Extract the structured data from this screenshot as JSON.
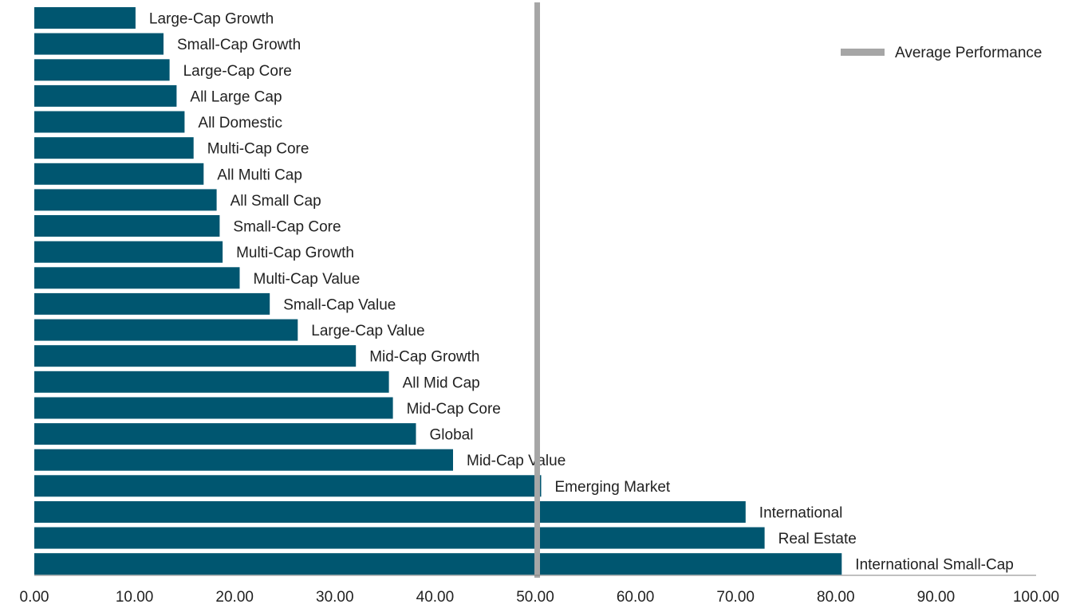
{
  "chart_data": {
    "type": "bar",
    "orientation": "horizontal",
    "title": "",
    "xlabel": "",
    "ylabel": "",
    "xlim": [
      0,
      100
    ],
    "x_ticks": [
      "0.00",
      "10.00",
      "20.00",
      "30.00",
      "40.00",
      "50.00",
      "60.00",
      "70.00",
      "80.00",
      "90.00",
      "100.00"
    ],
    "grid": false,
    "categories": [
      "Large-Cap Growth",
      "Small-Cap Growth",
      "Large-Cap Core",
      "All Large Cap",
      "All Domestic",
      "Multi-Cap Core",
      "All Multi Cap",
      "All Small Cap",
      "Small-Cap Core",
      "Multi-Cap Growth",
      "Multi-Cap Value",
      "Small-Cap Value",
      "Large-Cap Value",
      "Mid-Cap Growth",
      "All Mid Cap",
      "Mid-Cap Core",
      "Global",
      "Mid-Cap Value",
      "Emerging Market",
      "International",
      "Real Estate",
      "International Small-Cap"
    ],
    "values": [
      10.1,
      12.9,
      13.5,
      14.2,
      15.0,
      15.9,
      16.9,
      18.2,
      18.5,
      18.8,
      20.5,
      23.5,
      26.3,
      32.1,
      35.4,
      35.8,
      38.1,
      41.8,
      50.6,
      71.0,
      72.9,
      80.6
    ],
    "reference_line": {
      "name": "Average Performance",
      "value": 50.2
    },
    "legend": {
      "position": "top-right",
      "entries": [
        "Average Performance"
      ]
    },
    "colors": {
      "bar": "#005670",
      "reference": "#a6a6a6",
      "axis": "#808080"
    }
  }
}
